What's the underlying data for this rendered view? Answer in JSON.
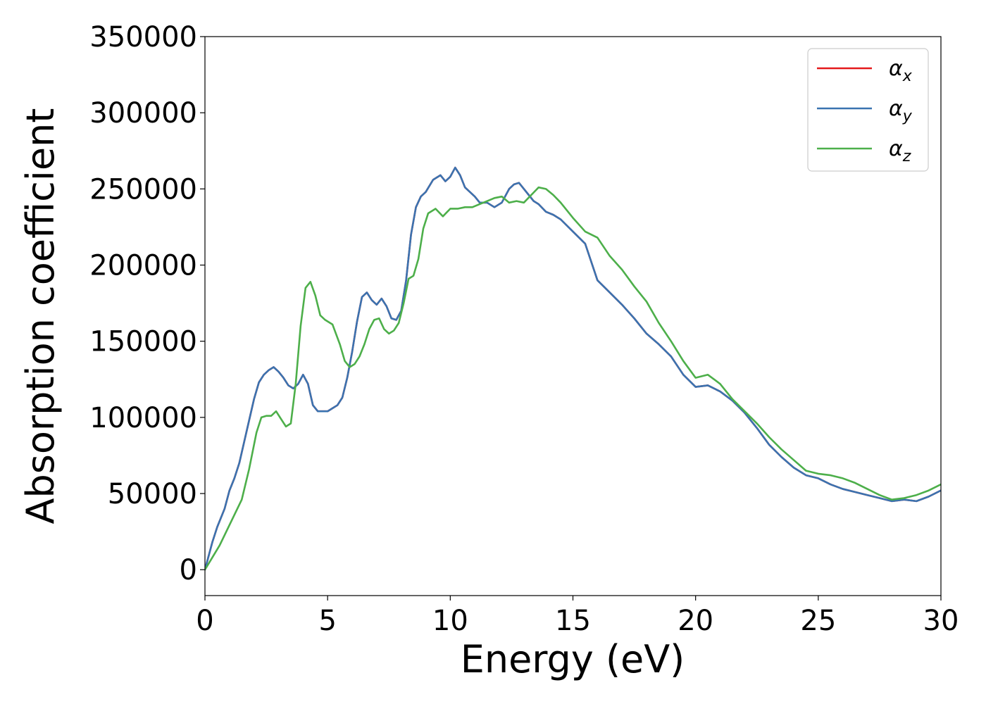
{
  "chart_data": {
    "type": "line",
    "xlabel": "Energy (eV)",
    "ylabel": "Absorption coefficient",
    "xlim": [
      0,
      30
    ],
    "ylim": [
      -17000,
      350000
    ],
    "xticks": [
      0,
      5,
      10,
      15,
      20,
      25,
      30
    ],
    "yticks": [
      0,
      50000,
      100000,
      150000,
      200000,
      250000,
      300000,
      350000
    ],
    "grid": false,
    "legend_position": "top-right",
    "series": [
      {
        "name": "α",
        "subscript": "x",
        "color": "#e41a1c",
        "x": [
          0,
          0.3,
          0.5,
          0.8,
          1.0,
          1.2,
          1.4,
          1.6,
          1.8,
          2.0,
          2.2,
          2.4,
          2.6,
          2.8,
          3.0,
          3.2,
          3.4,
          3.6,
          3.8,
          4.0,
          4.2,
          4.4,
          4.6,
          4.8,
          5.0,
          5.2,
          5.4,
          5.6,
          5.8,
          6.0,
          6.2,
          6.4,
          6.6,
          6.8,
          7.0,
          7.2,
          7.4,
          7.6,
          7.8,
          8.0,
          8.2,
          8.4,
          8.6,
          8.8,
          9.0,
          9.3,
          9.6,
          9.8,
          10.0,
          10.2,
          10.4,
          10.6,
          10.8,
          11.0,
          11.2,
          11.5,
          11.8,
          12.1,
          12.4,
          12.6,
          12.8,
          13.0,
          13.2,
          13.4,
          13.6,
          13.9,
          14.2,
          14.5,
          15.0,
          15.5,
          16.0,
          16.5,
          17.0,
          17.5,
          18.0,
          18.5,
          19.0,
          19.5,
          20.0,
          20.5,
          21.0,
          21.5,
          22.0,
          22.5,
          23.0,
          23.5,
          24.0,
          24.5,
          25.0,
          25.5,
          26.0,
          26.5,
          27.0,
          27.5,
          28.0,
          28.5,
          29.0,
          29.5,
          30.0
        ],
        "y": [
          0,
          18000,
          28000,
          40000,
          52000,
          60000,
          70000,
          84000,
          98000,
          112000,
          123000,
          128000,
          131000,
          133000,
          130000,
          126000,
          121000,
          119000,
          122000,
          128000,
          122000,
          108000,
          104000,
          104000,
          104000,
          106000,
          108000,
          113000,
          126000,
          143000,
          163000,
          179000,
          182000,
          177000,
          174000,
          178000,
          173000,
          165000,
          164000,
          170000,
          190000,
          220000,
          238000,
          245000,
          248000,
          256000,
          259000,
          255000,
          258000,
          264000,
          259000,
          251000,
          248000,
          245000,
          241000,
          241000,
          238000,
          241000,
          250000,
          253000,
          254000,
          250000,
          246000,
          242000,
          240000,
          235000,
          233000,
          230000,
          222000,
          214000,
          190000,
          182000,
          174000,
          165000,
          155000,
          148000,
          140000,
          128000,
          120000,
          121000,
          117000,
          111000,
          103000,
          93000,
          82000,
          74000,
          67000,
          62000,
          60000,
          56000,
          53000,
          51000,
          49000,
          47000,
          45000,
          46000,
          45000,
          48000,
          52000
        ]
      },
      {
        "name": "α",
        "subscript": "y",
        "color": "#3a73b0",
        "x": [
          0,
          0.3,
          0.5,
          0.8,
          1.0,
          1.2,
          1.4,
          1.6,
          1.8,
          2.0,
          2.2,
          2.4,
          2.6,
          2.8,
          3.0,
          3.2,
          3.4,
          3.6,
          3.8,
          4.0,
          4.2,
          4.4,
          4.6,
          4.8,
          5.0,
          5.2,
          5.4,
          5.6,
          5.8,
          6.0,
          6.2,
          6.4,
          6.6,
          6.8,
          7.0,
          7.2,
          7.4,
          7.6,
          7.8,
          8.0,
          8.2,
          8.4,
          8.6,
          8.8,
          9.0,
          9.3,
          9.6,
          9.8,
          10.0,
          10.2,
          10.4,
          10.6,
          10.8,
          11.0,
          11.2,
          11.5,
          11.8,
          12.1,
          12.4,
          12.6,
          12.8,
          13.0,
          13.2,
          13.4,
          13.6,
          13.9,
          14.2,
          14.5,
          15.0,
          15.5,
          16.0,
          16.5,
          17.0,
          17.5,
          18.0,
          18.5,
          19.0,
          19.5,
          20.0,
          20.5,
          21.0,
          21.5,
          22.0,
          22.5,
          23.0,
          23.5,
          24.0,
          24.5,
          25.0,
          25.5,
          26.0,
          26.5,
          27.0,
          27.5,
          28.0,
          28.5,
          29.0,
          29.5,
          30.0
        ],
        "y": [
          0,
          18000,
          28000,
          40000,
          52000,
          60000,
          70000,
          84000,
          98000,
          112000,
          123000,
          128000,
          131000,
          133000,
          130000,
          126000,
          121000,
          119000,
          122000,
          128000,
          122000,
          108000,
          104000,
          104000,
          104000,
          106000,
          108000,
          113000,
          126000,
          143000,
          163000,
          179000,
          182000,
          177000,
          174000,
          178000,
          173000,
          165000,
          164000,
          170000,
          190000,
          220000,
          238000,
          245000,
          248000,
          256000,
          259000,
          255000,
          258000,
          264000,
          259000,
          251000,
          248000,
          245000,
          241000,
          241000,
          238000,
          241000,
          250000,
          253000,
          254000,
          250000,
          246000,
          242000,
          240000,
          235000,
          233000,
          230000,
          222000,
          214000,
          190000,
          182000,
          174000,
          165000,
          155000,
          148000,
          140000,
          128000,
          120000,
          121000,
          117000,
          111000,
          103000,
          93000,
          82000,
          74000,
          67000,
          62000,
          60000,
          56000,
          53000,
          51000,
          49000,
          47000,
          45000,
          46000,
          45000,
          48000,
          52000
        ]
      },
      {
        "name": "α",
        "subscript": "z",
        "color": "#4daf4a",
        "x": [
          0,
          0.3,
          0.6,
          0.9,
          1.2,
          1.5,
          1.8,
          2.1,
          2.3,
          2.5,
          2.7,
          2.9,
          3.1,
          3.3,
          3.5,
          3.7,
          3.9,
          4.1,
          4.3,
          4.5,
          4.7,
          4.9,
          5.2,
          5.5,
          5.7,
          5.9,
          6.1,
          6.3,
          6.5,
          6.7,
          6.9,
          7.1,
          7.3,
          7.5,
          7.7,
          7.9,
          8.1,
          8.3,
          8.5,
          8.7,
          8.9,
          9.1,
          9.4,
          9.7,
          10.0,
          10.3,
          10.6,
          10.9,
          11.2,
          11.5,
          11.8,
          12.1,
          12.4,
          12.7,
          13.0,
          13.3,
          13.6,
          13.9,
          14.2,
          14.5,
          15.0,
          15.5,
          16.0,
          16.5,
          17.0,
          17.5,
          18.0,
          18.5,
          19.0,
          19.5,
          20.0,
          20.5,
          21.0,
          21.5,
          22.0,
          22.5,
          23.0,
          23.5,
          24.0,
          24.5,
          25.0,
          25.5,
          26.0,
          26.5,
          27.0,
          27.5,
          28.0,
          28.5,
          29.0,
          29.5,
          30.0
        ],
        "y": [
          0,
          8000,
          16000,
          26000,
          36000,
          46000,
          66000,
          90000,
          100000,
          101000,
          101000,
          104000,
          99000,
          94000,
          96000,
          122000,
          160000,
          185000,
          189000,
          180000,
          167000,
          164000,
          161000,
          148000,
          137000,
          133000,
          135000,
          140000,
          148000,
          158000,
          164000,
          165000,
          158000,
          155000,
          157000,
          162000,
          175000,
          191000,
          193000,
          204000,
          224000,
          234000,
          237000,
          232000,
          237000,
          237000,
          238000,
          238000,
          240000,
          242000,
          244000,
          245000,
          241000,
          242000,
          241000,
          246000,
          251000,
          250000,
          246000,
          241000,
          231000,
          222000,
          218000,
          206000,
          197000,
          186000,
          176000,
          162000,
          150000,
          137000,
          126000,
          128000,
          122000,
          112000,
          104000,
          96000,
          87000,
          79000,
          72000,
          65000,
          63000,
          62000,
          60000,
          57000,
          53000,
          49000,
          46000,
          47000,
          49000,
          52000,
          56000
        ]
      }
    ]
  }
}
